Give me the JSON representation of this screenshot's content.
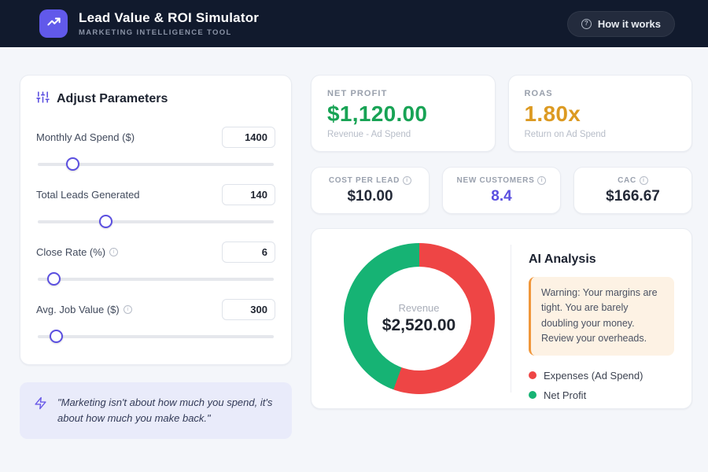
{
  "header": {
    "title": "Lead Value & ROI Simulator",
    "subtitle": "MARKETING INTELLIGENCE TOOL",
    "help_button": "How it works",
    "help_icon_glyph": "?",
    "brand_color": "#6159ea"
  },
  "parameters": {
    "title": "Adjust Parameters",
    "sliders": [
      {
        "label": "Monthly Ad Spend ($)",
        "value": "1400",
        "percent": 15,
        "has_info": false
      },
      {
        "label": "Total Leads Generated",
        "value": "140",
        "percent": 29,
        "has_info": false
      },
      {
        "label": "Close Rate (%)",
        "value": "6",
        "percent": 7,
        "has_info": true
      },
      {
        "label": "Avg. Job Value ($)",
        "value": "300",
        "percent": 8,
        "has_info": true
      }
    ],
    "info_glyph": "i",
    "accent_color": "#5b4fe0"
  },
  "quote": {
    "text": "\"Marketing isn't about how much you spend, it's about how much you make back.\""
  },
  "kpis": {
    "net_profit": {
      "label": "NET PROFIT",
      "value": "$1,120.00",
      "sub": "Revenue - Ad Spend",
      "color": "#18a355"
    },
    "roas": {
      "label": "ROAS",
      "value": "1.80x",
      "sub": "Return on Ad Spend",
      "color": "#dc9a22"
    }
  },
  "mini_cards": [
    {
      "label": "COST PER LEAD",
      "value": "$10.00",
      "color": "#242a38"
    },
    {
      "label": "NEW CUSTOMERS",
      "value": "8.4",
      "color": "#5a4fe0"
    },
    {
      "label": "CAC",
      "value": "$166.67",
      "color": "#242a38"
    }
  ],
  "chart_data": {
    "type": "pie",
    "donut": true,
    "start_angle_deg": 0,
    "center_label": "Revenue",
    "center_value": "$2,520.00",
    "total": 2520,
    "series": [
      {
        "name": "Expenses (Ad Spend)",
        "value": 1400,
        "color": "#ee4545"
      },
      {
        "name": "Net Profit",
        "value": 1120,
        "color": "#16b374"
      }
    ],
    "legend_position": "right"
  },
  "analysis": {
    "title": "AI Analysis",
    "warning": "Warning: Your margins are tight. You are barely doubling your money. Review your overheads.",
    "warning_accent": "#f0973b",
    "legend": [
      {
        "label": "Expenses (Ad Spend)",
        "color": "#ee4545"
      },
      {
        "label": "Net Profit",
        "color": "#16b374"
      }
    ]
  }
}
